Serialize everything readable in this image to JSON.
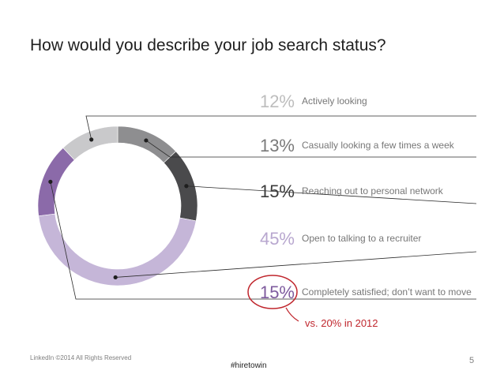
{
  "slide": {
    "title": "How would you describe your job search status?",
    "footer_left": "LinkedIn ©2014 All Rights Reserved",
    "footer_center": "#hiretowin",
    "page_number": "5"
  },
  "chart_data": {
    "type": "pie",
    "subtype": "donut",
    "title": "How would you describe your job search status?",
    "series": [
      {
        "label": "Actively looking",
        "value": 12,
        "value_label": "12%",
        "color": "#c9c9cb",
        "text_color": "#bdbdbd"
      },
      {
        "label": "Casually looking a few times a week",
        "value": 13,
        "value_label": "13%",
        "color": "#8e8e90",
        "text_color": "#7a7a7a"
      },
      {
        "label": "Reaching out to personal network",
        "value": 15,
        "value_label": "15%",
        "color": "#4a4a4c",
        "text_color": "#3b3b3b"
      },
      {
        "label": "Open to talking to a recruiter",
        "value": 45,
        "value_label": "45%",
        "color": "#c5b6d8",
        "text_color": "#b8a7cf"
      },
      {
        "label": "Completely satisfied; don’t want to move",
        "value": 15,
        "value_label": "15%",
        "color": "#8b6aa9",
        "text_color": "#7e5b9e"
      }
    ],
    "annotation": "vs. 20% in 2012",
    "annotation_color": "#c0262d"
  }
}
